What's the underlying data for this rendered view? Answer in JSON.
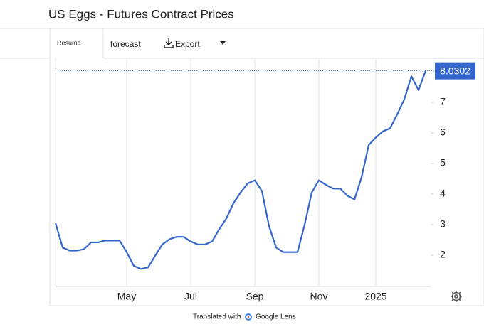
{
  "header": {
    "title": "US Eggs - Futures Contract Prices"
  },
  "toolbar": {
    "tabs": [
      "Resume",
      "forecast"
    ],
    "export": "Export"
  },
  "chart_data": {
    "type": "line",
    "categories": [
      null,
      null,
      null,
      null,
      null,
      null,
      null,
      null,
      null,
      null,
      "May",
      null,
      null,
      null,
      null,
      null,
      null,
      null,
      null,
      "Jul",
      null,
      null,
      null,
      null,
      null,
      null,
      null,
      null,
      "Sep",
      null,
      null,
      null,
      null,
      null,
      null,
      null,
      null,
      "Nov",
      null,
      null,
      null,
      null,
      null,
      null,
      null,
      "2025",
      null,
      null,
      null,
      null,
      null,
      null,
      null
    ],
    "series": [
      {
        "color": "#3366cc",
        "values": [
          3.05,
          2.25,
          2.15,
          2.15,
          2.2,
          2.42,
          2.42,
          2.48,
          2.48,
          2.48,
          2.1,
          1.65,
          1.55,
          1.6,
          1.98,
          2.35,
          2.52,
          2.6,
          2.6,
          2.45,
          2.35,
          2.35,
          2.45,
          2.85,
          3.2,
          3.7,
          4.05,
          4.35,
          4.45,
          4.1,
          2.95,
          2.25,
          2.1,
          2.1,
          2.1,
          3.0,
          4.05,
          4.45,
          4.3,
          4.18,
          4.18,
          3.95,
          3.82,
          4.55,
          5.6,
          5.85,
          6.05,
          6.15,
          6.6,
          7.1,
          7.85,
          7.4,
          8.0302
        ]
      }
    ],
    "ylim": [
      1,
      8.45
    ],
    "yticks": [
      2,
      3,
      4,
      5,
      6,
      7
    ],
    "grid": true
  },
  "footer": {
    "text": "Translated with",
    "brand": "Google Lens"
  }
}
